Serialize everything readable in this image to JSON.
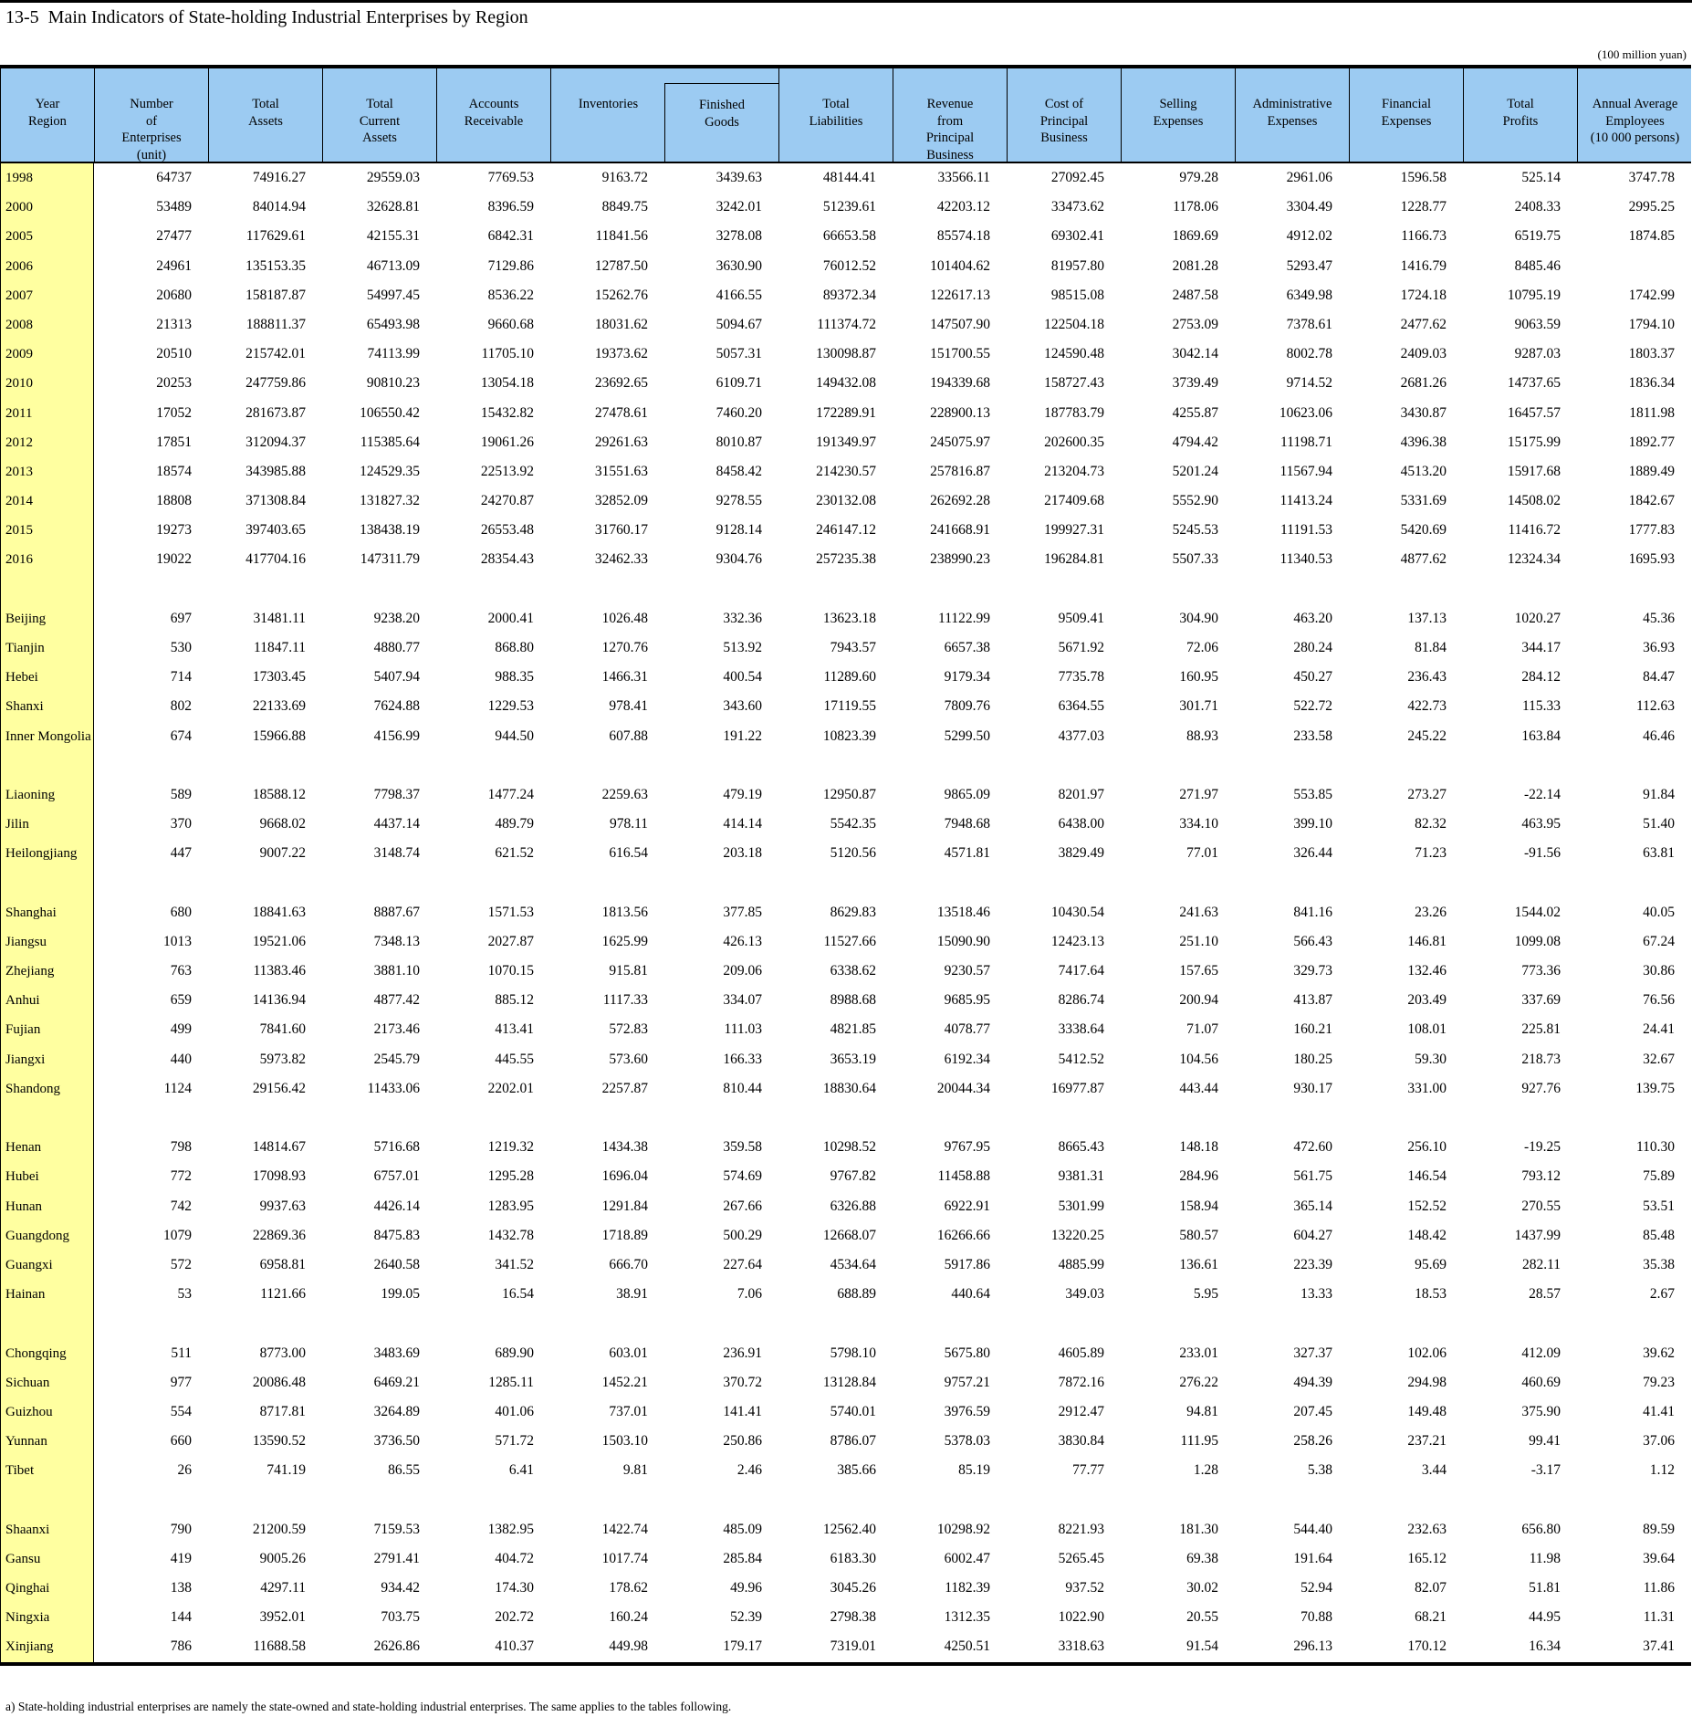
{
  "page": {
    "title": "13-5  Main Indicators of State-holding Industrial Enterprises by Region",
    "unit_note": "(100 million yuan)",
    "footnote": "a) State-holding industrial enterprises are namely the state-owned and state-holding industrial enterprises. The same applies to the tables following."
  },
  "colors": {
    "header_bg": "#9CCBF2",
    "label_bg": "#FFFFA0",
    "border": "#000000"
  },
  "table": {
    "columns": [
      {
        "id": "year_region",
        "lines": [
          "Year",
          "Region"
        ]
      },
      {
        "id": "number_of_enterprises",
        "lines": [
          "Number",
          "of",
          "Enterprises",
          "(unit)"
        ]
      },
      {
        "id": "total_assets",
        "lines": [
          "Total",
          "Assets"
        ]
      },
      {
        "id": "total_current_assets",
        "lines": [
          "Total",
          "Current",
          "Assets"
        ]
      },
      {
        "id": "accounts_receivable",
        "lines": [
          "Accounts",
          "Receivable"
        ]
      },
      {
        "id": "inventories",
        "lines": [
          "Inventories"
        ]
      },
      {
        "id": "finished_goods",
        "lines": [
          "Finished",
          "Goods"
        ],
        "sub_of": "inventories"
      },
      {
        "id": "total_liabilities",
        "lines": [
          "Total",
          "Liabilities"
        ]
      },
      {
        "id": "revenue_from_principal_business",
        "lines": [
          "Revenue",
          "from",
          "Principal",
          "Business"
        ]
      },
      {
        "id": "cost_of_principal_business",
        "lines": [
          "Cost of",
          "Principal",
          "Business"
        ]
      },
      {
        "id": "selling_expenses",
        "lines": [
          "Selling",
          "Expenses"
        ]
      },
      {
        "id": "administrative_expenses",
        "lines": [
          "Administrative",
          "Expenses"
        ]
      },
      {
        "id": "financial_expenses",
        "lines": [
          "Financial",
          "Expenses"
        ]
      },
      {
        "id": "total_profits",
        "lines": [
          "Total",
          "Profits"
        ]
      },
      {
        "id": "annual_average_employees",
        "lines": [
          "Annual Average",
          "Employees",
          "(10 000 persons)"
        ]
      }
    ],
    "rows": [
      {
        "label": "1998",
        "values": [
          "64737",
          "74916.27",
          "29559.03",
          "7769.53",
          "9163.72",
          "3439.63",
          "48144.41",
          "33566.11",
          "27092.45",
          "979.28",
          "2961.06",
          "1596.58",
          "525.14",
          "3747.78"
        ]
      },
      {
        "label": "2000",
        "values": [
          "53489",
          "84014.94",
          "32628.81",
          "8396.59",
          "8849.75",
          "3242.01",
          "51239.61",
          "42203.12",
          "33473.62",
          "1178.06",
          "3304.49",
          "1228.77",
          "2408.33",
          "2995.25"
        ]
      },
      {
        "label": "2005",
        "values": [
          "27477",
          "117629.61",
          "42155.31",
          "6842.31",
          "11841.56",
          "3278.08",
          "66653.58",
          "85574.18",
          "69302.41",
          "1869.69",
          "4912.02",
          "1166.73",
          "6519.75",
          "1874.85"
        ]
      },
      {
        "label": "2006",
        "values": [
          "24961",
          "135153.35",
          "46713.09",
          "7129.86",
          "12787.50",
          "3630.90",
          "76012.52",
          "101404.62",
          "81957.80",
          "2081.28",
          "5293.47",
          "1416.79",
          "8485.46",
          ""
        ]
      },
      {
        "label": "2007",
        "values": [
          "20680",
          "158187.87",
          "54997.45",
          "8536.22",
          "15262.76",
          "4166.55",
          "89372.34",
          "122617.13",
          "98515.08",
          "2487.58",
          "6349.98",
          "1724.18",
          "10795.19",
          "1742.99"
        ]
      },
      {
        "label": "2008",
        "values": [
          "21313",
          "188811.37",
          "65493.98",
          "9660.68",
          "18031.62",
          "5094.67",
          "111374.72",
          "147507.90",
          "122504.18",
          "2753.09",
          "7378.61",
          "2477.62",
          "9063.59",
          "1794.10"
        ]
      },
      {
        "label": "2009",
        "values": [
          "20510",
          "215742.01",
          "74113.99",
          "11705.10",
          "19373.62",
          "5057.31",
          "130098.87",
          "151700.55",
          "124590.48",
          "3042.14",
          "8002.78",
          "2409.03",
          "9287.03",
          "1803.37"
        ]
      },
      {
        "label": "2010",
        "values": [
          "20253",
          "247759.86",
          "90810.23",
          "13054.18",
          "23692.65",
          "6109.71",
          "149432.08",
          "194339.68",
          "158727.43",
          "3739.49",
          "9714.52",
          "2681.26",
          "14737.65",
          "1836.34"
        ]
      },
      {
        "label": "2011",
        "values": [
          "17052",
          "281673.87",
          "106550.42",
          "15432.82",
          "27478.61",
          "7460.20",
          "172289.91",
          "228900.13",
          "187783.79",
          "4255.87",
          "10623.06",
          "3430.87",
          "16457.57",
          "1811.98"
        ]
      },
      {
        "label": "2012",
        "values": [
          "17851",
          "312094.37",
          "115385.64",
          "19061.26",
          "29261.63",
          "8010.87",
          "191349.97",
          "245075.97",
          "202600.35",
          "4794.42",
          "11198.71",
          "4396.38",
          "15175.99",
          "1892.77"
        ]
      },
      {
        "label": "2013",
        "values": [
          "18574",
          "343985.88",
          "124529.35",
          "22513.92",
          "31551.63",
          "8458.42",
          "214230.57",
          "257816.87",
          "213204.73",
          "5201.24",
          "11567.94",
          "4513.20",
          "15917.68",
          "1889.49"
        ]
      },
      {
        "label": "2014",
        "values": [
          "18808",
          "371308.84",
          "131827.32",
          "24270.87",
          "32852.09",
          "9278.55",
          "230132.08",
          "262692.28",
          "217409.68",
          "5552.90",
          "11413.24",
          "5331.69",
          "14508.02",
          "1842.67"
        ]
      },
      {
        "label": "2015",
        "values": [
          "19273",
          "397403.65",
          "138438.19",
          "26553.48",
          "31760.17",
          "9128.14",
          "246147.12",
          "241668.91",
          "199927.31",
          "5245.53",
          "11191.53",
          "5420.69",
          "11416.72",
          "1777.83"
        ]
      },
      {
        "label": "2016",
        "values": [
          "19022",
          "417704.16",
          "147311.79",
          "28354.43",
          "32462.33",
          "9304.76",
          "257235.38",
          "238990.23",
          "196284.81",
          "5507.33",
          "11340.53",
          "4877.62",
          "12324.34",
          "1695.93"
        ]
      },
      {
        "spacer": true
      },
      {
        "label": "Beijing",
        "values": [
          "697",
          "31481.11",
          "9238.20",
          "2000.41",
          "1026.48",
          "332.36",
          "13623.18",
          "11122.99",
          "9509.41",
          "304.90",
          "463.20",
          "137.13",
          "1020.27",
          "45.36"
        ]
      },
      {
        "label": "Tianjin",
        "values": [
          "530",
          "11847.11",
          "4880.77",
          "868.80",
          "1270.76",
          "513.92",
          "7943.57",
          "6657.38",
          "5671.92",
          "72.06",
          "280.24",
          "81.84",
          "344.17",
          "36.93"
        ]
      },
      {
        "label": "Hebei",
        "values": [
          "714",
          "17303.45",
          "5407.94",
          "988.35",
          "1466.31",
          "400.54",
          "11289.60",
          "9179.34",
          "7735.78",
          "160.95",
          "450.27",
          "236.43",
          "284.12",
          "84.47"
        ]
      },
      {
        "label": "Shanxi",
        "values": [
          "802",
          "22133.69",
          "7624.88",
          "1229.53",
          "978.41",
          "343.60",
          "17119.55",
          "7809.76",
          "6364.55",
          "301.71",
          "522.72",
          "422.73",
          "115.33",
          "112.63"
        ]
      },
      {
        "label": "Inner Mongolia",
        "values": [
          "674",
          "15966.88",
          "4156.99",
          "944.50",
          "607.88",
          "191.22",
          "10823.39",
          "5299.50",
          "4377.03",
          "88.93",
          "233.58",
          "245.22",
          "163.84",
          "46.46"
        ]
      },
      {
        "spacer": true
      },
      {
        "label": "Liaoning",
        "values": [
          "589",
          "18588.12",
          "7798.37",
          "1477.24",
          "2259.63",
          "479.19",
          "12950.87",
          "9865.09",
          "8201.97",
          "271.97",
          "553.85",
          "273.27",
          "-22.14",
          "91.84"
        ]
      },
      {
        "label": "Jilin",
        "values": [
          "370",
          "9668.02",
          "4437.14",
          "489.79",
          "978.11",
          "414.14",
          "5542.35",
          "7948.68",
          "6438.00",
          "334.10",
          "399.10",
          "82.32",
          "463.95",
          "51.40"
        ]
      },
      {
        "label": "Heilongjiang",
        "values": [
          "447",
          "9007.22",
          "3148.74",
          "621.52",
          "616.54",
          "203.18",
          "5120.56",
          "4571.81",
          "3829.49",
          "77.01",
          "326.44",
          "71.23",
          "-91.56",
          "63.81"
        ]
      },
      {
        "spacer": true
      },
      {
        "label": "Shanghai",
        "values": [
          "680",
          "18841.63",
          "8887.67",
          "1571.53",
          "1813.56",
          "377.85",
          "8629.83",
          "13518.46",
          "10430.54",
          "241.63",
          "841.16",
          "23.26",
          "1544.02",
          "40.05"
        ]
      },
      {
        "label": "Jiangsu",
        "values": [
          "1013",
          "19521.06",
          "7348.13",
          "2027.87",
          "1625.99",
          "426.13",
          "11527.66",
          "15090.90",
          "12423.13",
          "251.10",
          "566.43",
          "146.81",
          "1099.08",
          "67.24"
        ]
      },
      {
        "label": "Zhejiang",
        "values": [
          "763",
          "11383.46",
          "3881.10",
          "1070.15",
          "915.81",
          "209.06",
          "6338.62",
          "9230.57",
          "7417.64",
          "157.65",
          "329.73",
          "132.46",
          "773.36",
          "30.86"
        ]
      },
      {
        "label": "Anhui",
        "values": [
          "659",
          "14136.94",
          "4877.42",
          "885.12",
          "1117.33",
          "334.07",
          "8988.68",
          "9685.95",
          "8286.74",
          "200.94",
          "413.87",
          "203.49",
          "337.69",
          "76.56"
        ]
      },
      {
        "label": "Fujian",
        "values": [
          "499",
          "7841.60",
          "2173.46",
          "413.41",
          "572.83",
          "111.03",
          "4821.85",
          "4078.77",
          "3338.64",
          "71.07",
          "160.21",
          "108.01",
          "225.81",
          "24.41"
        ]
      },
      {
        "label": "Jiangxi",
        "values": [
          "440",
          "5973.82",
          "2545.79",
          "445.55",
          "573.60",
          "166.33",
          "3653.19",
          "6192.34",
          "5412.52",
          "104.56",
          "180.25",
          "59.30",
          "218.73",
          "32.67"
        ]
      },
      {
        "label": "Shandong",
        "values": [
          "1124",
          "29156.42",
          "11433.06",
          "2202.01",
          "2257.87",
          "810.44",
          "18830.64",
          "20044.34",
          "16977.87",
          "443.44",
          "930.17",
          "331.00",
          "927.76",
          "139.75"
        ]
      },
      {
        "spacer": true
      },
      {
        "label": "Henan",
        "values": [
          "798",
          "14814.67",
          "5716.68",
          "1219.32",
          "1434.38",
          "359.58",
          "10298.52",
          "9767.95",
          "8665.43",
          "148.18",
          "472.60",
          "256.10",
          "-19.25",
          "110.30"
        ]
      },
      {
        "label": "Hubei",
        "values": [
          "772",
          "17098.93",
          "6757.01",
          "1295.28",
          "1696.04",
          "574.69",
          "9767.82",
          "11458.88",
          "9381.31",
          "284.96",
          "561.75",
          "146.54",
          "793.12",
          "75.89"
        ]
      },
      {
        "label": "Hunan",
        "values": [
          "742",
          "9937.63",
          "4426.14",
          "1283.95",
          "1291.84",
          "267.66",
          "6326.88",
          "6922.91",
          "5301.99",
          "158.94",
          "365.14",
          "152.52",
          "270.55",
          "53.51"
        ]
      },
      {
        "label": "Guangdong",
        "values": [
          "1079",
          "22869.36",
          "8475.83",
          "1432.78",
          "1718.89",
          "500.29",
          "12668.07",
          "16266.66",
          "13220.25",
          "580.57",
          "604.27",
          "148.42",
          "1437.99",
          "85.48"
        ]
      },
      {
        "label": "Guangxi",
        "values": [
          "572",
          "6958.81",
          "2640.58",
          "341.52",
          "666.70",
          "227.64",
          "4534.64",
          "5917.86",
          "4885.99",
          "136.61",
          "223.39",
          "95.69",
          "282.11",
          "35.38"
        ]
      },
      {
        "label": "Hainan",
        "values": [
          "53",
          "1121.66",
          "199.05",
          "16.54",
          "38.91",
          "7.06",
          "688.89",
          "440.64",
          "349.03",
          "5.95",
          "13.33",
          "18.53",
          "28.57",
          "2.67"
        ]
      },
      {
        "spacer": true
      },
      {
        "label": "Chongqing",
        "values": [
          "511",
          "8773.00",
          "3483.69",
          "689.90",
          "603.01",
          "236.91",
          "5798.10",
          "5675.80",
          "4605.89",
          "233.01",
          "327.37",
          "102.06",
          "412.09",
          "39.62"
        ]
      },
      {
        "label": "Sichuan",
        "values": [
          "977",
          "20086.48",
          "6469.21",
          "1285.11",
          "1452.21",
          "370.72",
          "13128.84",
          "9757.21",
          "7872.16",
          "276.22",
          "494.39",
          "294.98",
          "460.69",
          "79.23"
        ]
      },
      {
        "label": "Guizhou",
        "values": [
          "554",
          "8717.81",
          "3264.89",
          "401.06",
          "737.01",
          "141.41",
          "5740.01",
          "3976.59",
          "2912.47",
          "94.81",
          "207.45",
          "149.48",
          "375.90",
          "41.41"
        ]
      },
      {
        "label": "Yunnan",
        "values": [
          "660",
          "13590.52",
          "3736.50",
          "571.72",
          "1503.10",
          "250.86",
          "8786.07",
          "5378.03",
          "3830.84",
          "111.95",
          "258.26",
          "237.21",
          "99.41",
          "37.06"
        ]
      },
      {
        "label": "Tibet",
        "values": [
          "26",
          "741.19",
          "86.55",
          "6.41",
          "9.81",
          "2.46",
          "385.66",
          "85.19",
          "77.77",
          "1.28",
          "5.38",
          "3.44",
          "-3.17",
          "1.12"
        ]
      },
      {
        "spacer": true
      },
      {
        "label": "Shaanxi",
        "values": [
          "790",
          "21200.59",
          "7159.53",
          "1382.95",
          "1422.74",
          "485.09",
          "12562.40",
          "10298.92",
          "8221.93",
          "181.30",
          "544.40",
          "232.63",
          "656.80",
          "89.59"
        ]
      },
      {
        "label": "Gansu",
        "values": [
          "419",
          "9005.26",
          "2791.41",
          "404.72",
          "1017.74",
          "285.84",
          "6183.30",
          "6002.47",
          "5265.45",
          "69.38",
          "191.64",
          "165.12",
          "11.98",
          "39.64"
        ]
      },
      {
        "label": "Qinghai",
        "values": [
          "138",
          "4297.11",
          "934.42",
          "174.30",
          "178.62",
          "49.96",
          "3045.26",
          "1182.39",
          "937.52",
          "30.02",
          "52.94",
          "82.07",
          "51.81",
          "11.86"
        ]
      },
      {
        "label": "Ningxia",
        "values": [
          "144",
          "3952.01",
          "703.75",
          "202.72",
          "160.24",
          "52.39",
          "2798.38",
          "1312.35",
          "1022.90",
          "20.55",
          "70.88",
          "68.21",
          "44.95",
          "11.31"
        ]
      },
      {
        "label": "Xinjiang",
        "values": [
          "786",
          "11688.58",
          "2626.86",
          "410.37",
          "449.98",
          "179.17",
          "7319.01",
          "4250.51",
          "3318.63",
          "91.54",
          "296.13",
          "170.12",
          "16.34",
          "37.41"
        ]
      }
    ]
  }
}
